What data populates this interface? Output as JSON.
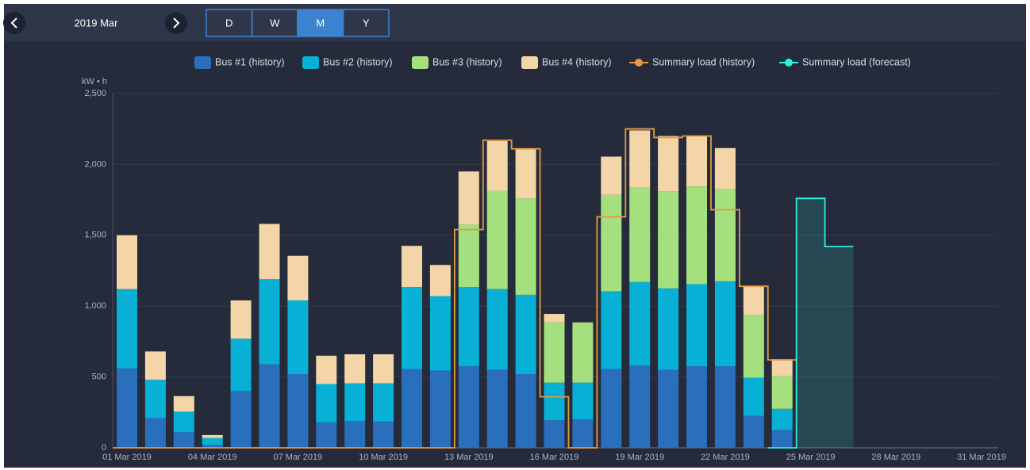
{
  "toolbar": {
    "period": "2019 Mar",
    "views": [
      "D",
      "W",
      "M",
      "Y"
    ],
    "selected": "M"
  },
  "chart_data": {
    "type": "bar",
    "stacked": true,
    "y_label": "kW • h",
    "categories": [
      "01 Mar 2019",
      null,
      null,
      "04 Mar 2019",
      null,
      null,
      "07 Mar 2019",
      null,
      null,
      "10 Mar 2019",
      null,
      null,
      "13 Mar 2019",
      null,
      null,
      "16 Mar 2019",
      null,
      null,
      "19 Mar 2019",
      null,
      null,
      "22 Mar 2019",
      null,
      null,
      "25 Mar 2019",
      null,
      null,
      "28 Mar 2019",
      null,
      null,
      "31 Mar 2019"
    ],
    "ylim": [
      0,
      2500
    ],
    "yticks": [
      0,
      500,
      {
        "value": 1000,
        "label": "1,000"
      },
      {
        "value": 1500,
        "label": "1,500"
      },
      {
        "value": 2000,
        "label": "2,000"
      },
      {
        "value": 2500,
        "label": "2,500"
      }
    ],
    "grid": true,
    "legend": "top",
    "series": [
      {
        "name": "Bus #1 (history)",
        "type": "bar",
        "color": "#2a6fbb",
        "values": [
          560,
          210,
          110,
          20,
          400,
          590,
          520,
          180,
          190,
          185,
          555,
          545,
          575,
          550,
          520,
          195,
          200,
          555,
          580,
          550,
          575,
          575,
          225,
          125,
          null,
          null,
          null,
          null,
          null,
          null,
          null
        ]
      },
      {
        "name": "Bus #2 (history)",
        "type": "bar",
        "color": "#07b0d4",
        "values": [
          560,
          270,
          145,
          50,
          370,
          600,
          520,
          270,
          265,
          270,
          580,
          525,
          560,
          570,
          560,
          265,
          260,
          550,
          590,
          575,
          580,
          600,
          270,
          150,
          null,
          null,
          null,
          null,
          null,
          null,
          null
        ]
      },
      {
        "name": "Bus #3 (history)",
        "type": "bar",
        "color": "#a5e07e",
        "values": [
          0,
          0,
          0,
          0,
          0,
          0,
          0,
          0,
          0,
          0,
          0,
          0,
          440,
          695,
          680,
          425,
          425,
          680,
          670,
          685,
          690,
          650,
          440,
          230,
          null,
          null,
          null,
          null,
          null,
          null,
          null
        ]
      },
      {
        "name": "Bus #4 (history)",
        "type": "bar",
        "color": "#f3d5a8",
        "values": [
          380,
          200,
          110,
          20,
          270,
          390,
          315,
          200,
          205,
          205,
          290,
          220,
          375,
          350,
          350,
          60,
          0,
          270,
          400,
          390,
          355,
          290,
          205,
          120,
          null,
          null,
          null,
          null,
          null,
          null,
          null
        ]
      },
      {
        "name": "Summary load (history)",
        "type": "step",
        "color": "#e39a42",
        "values": [
          0,
          0,
          0,
          0,
          0,
          0,
          0,
          0,
          0,
          0,
          0,
          0,
          1540,
          2170,
          2110,
          360,
          0,
          1630,
          2250,
          2190,
          2200,
          1680,
          1140,
          620,
          null,
          null,
          null,
          null,
          null,
          null,
          null
        ]
      },
      {
        "name": "Summary load (forecast)",
        "type": "step",
        "area": true,
        "color": "#2ef0de",
        "values": [
          null,
          null,
          null,
          null,
          null,
          null,
          null,
          null,
          null,
          null,
          null,
          null,
          null,
          null,
          null,
          null,
          null,
          null,
          null,
          null,
          null,
          null,
          null,
          0,
          1760,
          1420,
          null,
          null,
          null,
          null,
          null
        ]
      }
    ]
  }
}
